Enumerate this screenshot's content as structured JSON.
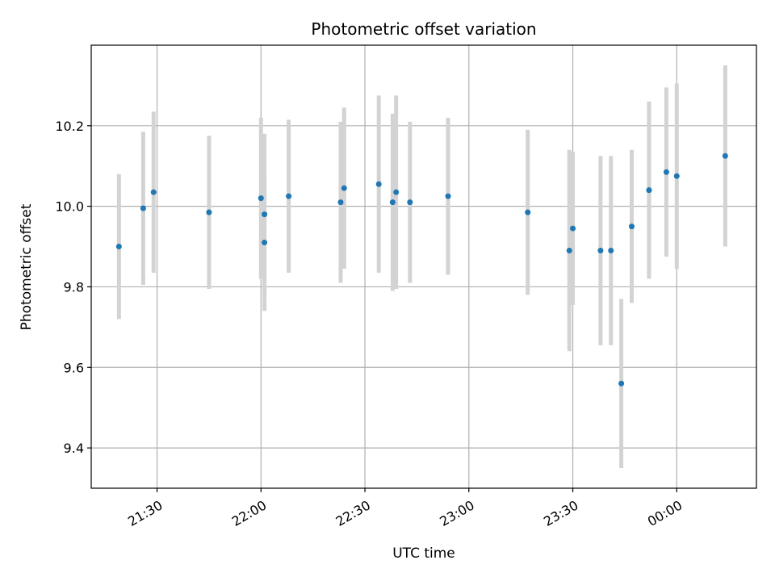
{
  "chart_data": {
    "type": "scatter",
    "title": "Photometric offset variation",
    "xlabel": "UTC time",
    "ylabel": "Photometric offset",
    "x_unit": "time of day (UTC), observation starts on the day before midnight",
    "xlim": [
      "21:11",
      "00:23"
    ],
    "ylim": [
      9.3,
      10.4
    ],
    "grid": true,
    "x_ticks": [
      "21:30",
      "22:00",
      "22:30",
      "23:00",
      "23:30",
      "00:00"
    ],
    "y_ticks": [
      "9.4",
      "9.6",
      "9.8",
      "10.0",
      "10.2"
    ],
    "marker_color": "#1f77b4",
    "errorbar_color": "#d3d3d3",
    "series": [
      {
        "points": [
          {
            "x": "21:19",
            "y": 9.9,
            "err": 0.18
          },
          {
            "x": "21:26",
            "y": 9.995,
            "err": 0.19
          },
          {
            "x": "21:29",
            "y": 10.035,
            "err": 0.2
          },
          {
            "x": "21:45",
            "y": 9.985,
            "err": 0.19
          },
          {
            "x": "22:00",
            "y": 10.02,
            "err": 0.2
          },
          {
            "x": "22:01",
            "y": 9.91,
            "err": 0.17
          },
          {
            "x": "22:01",
            "y": 9.98,
            "err": 0.2
          },
          {
            "x": "22:08",
            "y": 10.025,
            "err": 0.19
          },
          {
            "x": "22:23",
            "y": 10.01,
            "err": 0.2
          },
          {
            "x": "22:24",
            "y": 10.045,
            "err": 0.2
          },
          {
            "x": "22:34",
            "y": 10.055,
            "err": 0.22
          },
          {
            "x": "22:38",
            "y": 10.01,
            "err": 0.22
          },
          {
            "x": "22:39",
            "y": 10.035,
            "err": 0.24
          },
          {
            "x": "22:43",
            "y": 10.01,
            "err": 0.2
          },
          {
            "x": "22:54",
            "y": 10.025,
            "err": 0.195
          },
          {
            "x": "23:17",
            "y": 9.985,
            "err": 0.205
          },
          {
            "x": "23:29",
            "y": 9.89,
            "err": 0.25
          },
          {
            "x": "23:30",
            "y": 9.945,
            "err": 0.19
          },
          {
            "x": "23:38",
            "y": 9.89,
            "err": 0.235
          },
          {
            "x": "23:41",
            "y": 9.89,
            "err": 0.235
          },
          {
            "x": "23:44",
            "y": 9.56,
            "err": 0.21
          },
          {
            "x": "23:47",
            "y": 9.95,
            "err": 0.19
          },
          {
            "x": "23:52",
            "y": 10.04,
            "err": 0.22
          },
          {
            "x": "23:52",
            "y": 10.04,
            "err": 0.21
          },
          {
            "x": "23:57",
            "y": 10.085,
            "err": 0.21
          },
          {
            "x": "00:00",
            "y": 10.075,
            "err": 0.23
          },
          {
            "x": "00:14",
            "y": 10.125,
            "err": 0.225
          }
        ]
      }
    ]
  }
}
